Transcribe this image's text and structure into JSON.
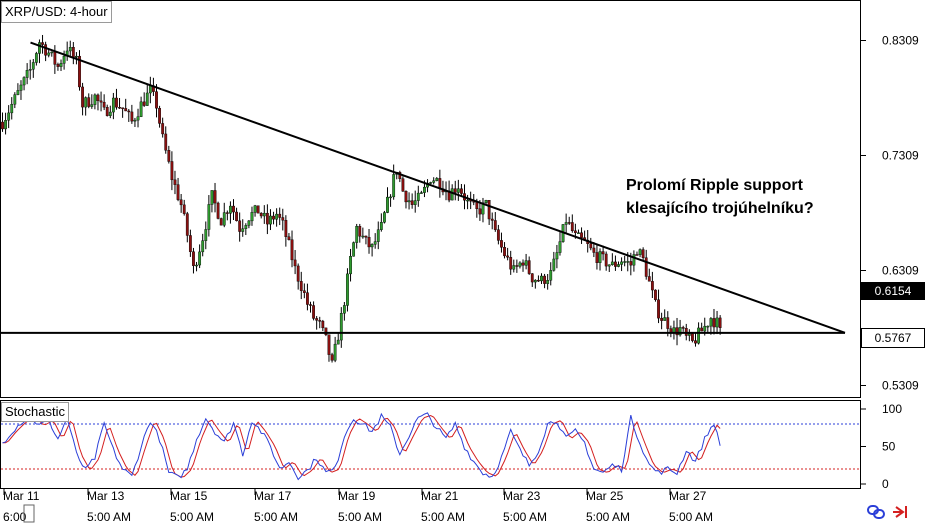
{
  "chart_title": "XRP/USD: 4-hour",
  "indicator_title": "Stochastic",
  "annotation": {
    "line1": "Prolomí Ripple support",
    "line2": "klesajícího trojúhelníku?"
  },
  "price_axis": [
    "0.8309",
    "0.7309",
    "0.6309",
    "0.5309"
  ],
  "stoch_axis": [
    "100",
    "50",
    "0"
  ],
  "price_tags": {
    "resistance": "0.6154",
    "support": "0.5767"
  },
  "date_labels": [
    "Mar 11",
    "Mar 13",
    "Mar 15",
    "Mar 17",
    "Mar 19",
    "Mar 21",
    "Mar 23",
    "Mar 25",
    "Mar 27"
  ],
  "time_labels": [
    "6:00",
    "5:00 AM",
    "5:00 AM",
    "5:00 AM",
    "5:00 AM",
    "5:00 AM",
    "5:00 AM",
    "5:00 AM",
    "5:00 AM"
  ],
  "colors": {
    "bull": "#2e9a2e",
    "bear": "#8a1010",
    "stoch_k": "#2b3fd8",
    "stoch_d": "#d42020",
    "overbought": "#2b3fd8",
    "oversold": "#d42020"
  },
  "chart_data": {
    "type": "candlestick",
    "symbol": "XRP/USD",
    "timeframe": "4-hour",
    "ylim": [
      0.51,
      0.86
    ],
    "close_path": [
      [
        0,
        0.76
      ],
      [
        3,
        0.775
      ],
      [
        6,
        0.79
      ],
      [
        9,
        0.805
      ],
      [
        12,
        0.83
      ],
      [
        15,
        0.82
      ],
      [
        18,
        0.808
      ],
      [
        21,
        0.825
      ],
      [
        24,
        0.812
      ],
      [
        26,
        0.775
      ],
      [
        30,
        0.782
      ],
      [
        33,
        0.768
      ],
      [
        36,
        0.778
      ],
      [
        39,
        0.772
      ],
      [
        42,
        0.76
      ],
      [
        45,
        0.775
      ],
      [
        48,
        0.787
      ],
      [
        50,
        0.775
      ],
      [
        52,
        0.745
      ],
      [
        55,
        0.712
      ],
      [
        58,
        0.688
      ],
      [
        60,
        0.662
      ],
      [
        62,
        0.632
      ],
      [
        65,
        0.66
      ],
      [
        68,
        0.695
      ],
      [
        71,
        0.675
      ],
      [
        74,
        0.69
      ],
      [
        77,
        0.668
      ],
      [
        80,
        0.678
      ],
      [
        83,
        0.683
      ],
      [
        86,
        0.672
      ],
      [
        89,
        0.68
      ],
      [
        91,
        0.67
      ],
      [
        93,
        0.652
      ],
      [
        95,
        0.632
      ],
      [
        97,
        0.618
      ],
      [
        99,
        0.602
      ],
      [
        101,
        0.59
      ],
      [
        103,
        0.583
      ],
      [
        105,
        0.57
      ],
      [
        107,
        0.548
      ],
      [
        109,
        0.575
      ],
      [
        111,
        0.605
      ],
      [
        113,
        0.64
      ],
      [
        115,
        0.668
      ],
      [
        118,
        0.655
      ],
      [
        120,
        0.65
      ],
      [
        123,
        0.668
      ],
      [
        126,
        0.7
      ],
      [
        128,
        0.72
      ],
      [
        130,
        0.7
      ],
      [
        133,
        0.688
      ],
      [
        136,
        0.695
      ],
      [
        139,
        0.712
      ],
      [
        142,
        0.708
      ],
      [
        145,
        0.698
      ],
      [
        148,
        0.705
      ],
      [
        151,
        0.69
      ],
      [
        154,
        0.682
      ],
      [
        157,
        0.688
      ],
      [
        160,
        0.662
      ],
      [
        163,
        0.645
      ],
      [
        166,
        0.63
      ],
      [
        169,
        0.64
      ],
      [
        172,
        0.625
      ],
      [
        175,
        0.622
      ],
      [
        178,
        0.628
      ],
      [
        180,
        0.645
      ],
      [
        183,
        0.675
      ],
      [
        186,
        0.66
      ],
      [
        189,
        0.655
      ],
      [
        192,
        0.645
      ],
      [
        195,
        0.64
      ],
      [
        198,
        0.635
      ],
      [
        201,
        0.64
      ],
      [
        204,
        0.636
      ],
      [
        206,
        0.65
      ],
      [
        208,
        0.64
      ],
      [
        210,
        0.62
      ],
      [
        212,
        0.6
      ],
      [
        214,
        0.59
      ],
      [
        216,
        0.585
      ],
      [
        218,
        0.578
      ],
      [
        220,
        0.58
      ],
      [
        222,
        0.572
      ],
      [
        224,
        0.568
      ],
      [
        226,
        0.575
      ],
      [
        228,
        0.582
      ],
      [
        230,
        0.59
      ],
      [
        232,
        0.585
      ],
      [
        233,
        0.577
      ]
    ],
    "trendlines": [
      {
        "name": "descending-resistance",
        "from": [
          0,
          0.83
        ],
        "to": [
          260,
          0.5767
        ]
      },
      {
        "name": "horizontal-support",
        "value": 0.5767
      }
    ],
    "stochastic": {
      "levels": {
        "overbought": 80,
        "oversold": 20
      },
      "k_path": [
        [
          0,
          55
        ],
        [
          3,
          70
        ],
        [
          6,
          82
        ],
        [
          9,
          90
        ],
        [
          12,
          78
        ],
        [
          15,
          85
        ],
        [
          18,
          60
        ],
        [
          21,
          88
        ],
        [
          24,
          40
        ],
        [
          27,
          18
        ],
        [
          30,
          35
        ],
        [
          33,
          80
        ],
        [
          36,
          45
        ],
        [
          39,
          20
        ],
        [
          42,
          10
        ],
        [
          45,
          50
        ],
        [
          48,
          85
        ],
        [
          51,
          60
        ],
        [
          54,
          15
        ],
        [
          57,
          8
        ],
        [
          60,
          20
        ],
        [
          63,
          60
        ],
        [
          66,
          88
        ],
        [
          69,
          70
        ],
        [
          72,
          55
        ],
        [
          75,
          82
        ],
        [
          78,
          40
        ],
        [
          81,
          85
        ],
        [
          84,
          70
        ],
        [
          87,
          50
        ],
        [
          90,
          20
        ],
        [
          93,
          30
        ],
        [
          96,
          10
        ],
        [
          99,
          18
        ],
        [
          102,
          35
        ],
        [
          105,
          15
        ],
        [
          108,
          20
        ],
        [
          111,
          65
        ],
        [
          114,
          88
        ],
        [
          117,
          80
        ],
        [
          120,
          70
        ],
        [
          123,
          90
        ],
        [
          126,
          75
        ],
        [
          129,
          40
        ],
        [
          132,
          65
        ],
        [
          135,
          88
        ],
        [
          138,
          92
        ],
        [
          141,
          75
        ],
        [
          144,
          60
        ],
        [
          147,
          80
        ],
        [
          150,
          50
        ],
        [
          153,
          30
        ],
        [
          156,
          15
        ],
        [
          159,
          10
        ],
        [
          162,
          35
        ],
        [
          165,
          70
        ],
        [
          168,
          45
        ],
        [
          171,
          25
        ],
        [
          174,
          45
        ],
        [
          177,
          80
        ],
        [
          180,
          85
        ],
        [
          183,
          60
        ],
        [
          186,
          70
        ],
        [
          189,
          55
        ],
        [
          192,
          20
        ],
        [
          195,
          15
        ],
        [
          198,
          25
        ],
        [
          201,
          20
        ],
        [
          204,
          88
        ],
        [
          207,
          55
        ],
        [
          210,
          25
        ],
        [
          213,
          15
        ],
        [
          216,
          20
        ],
        [
          219,
          15
        ],
        [
          222,
          45
        ],
        [
          225,
          30
        ],
        [
          228,
          60
        ],
        [
          231,
          82
        ],
        [
          233,
          50
        ]
      ]
    }
  }
}
